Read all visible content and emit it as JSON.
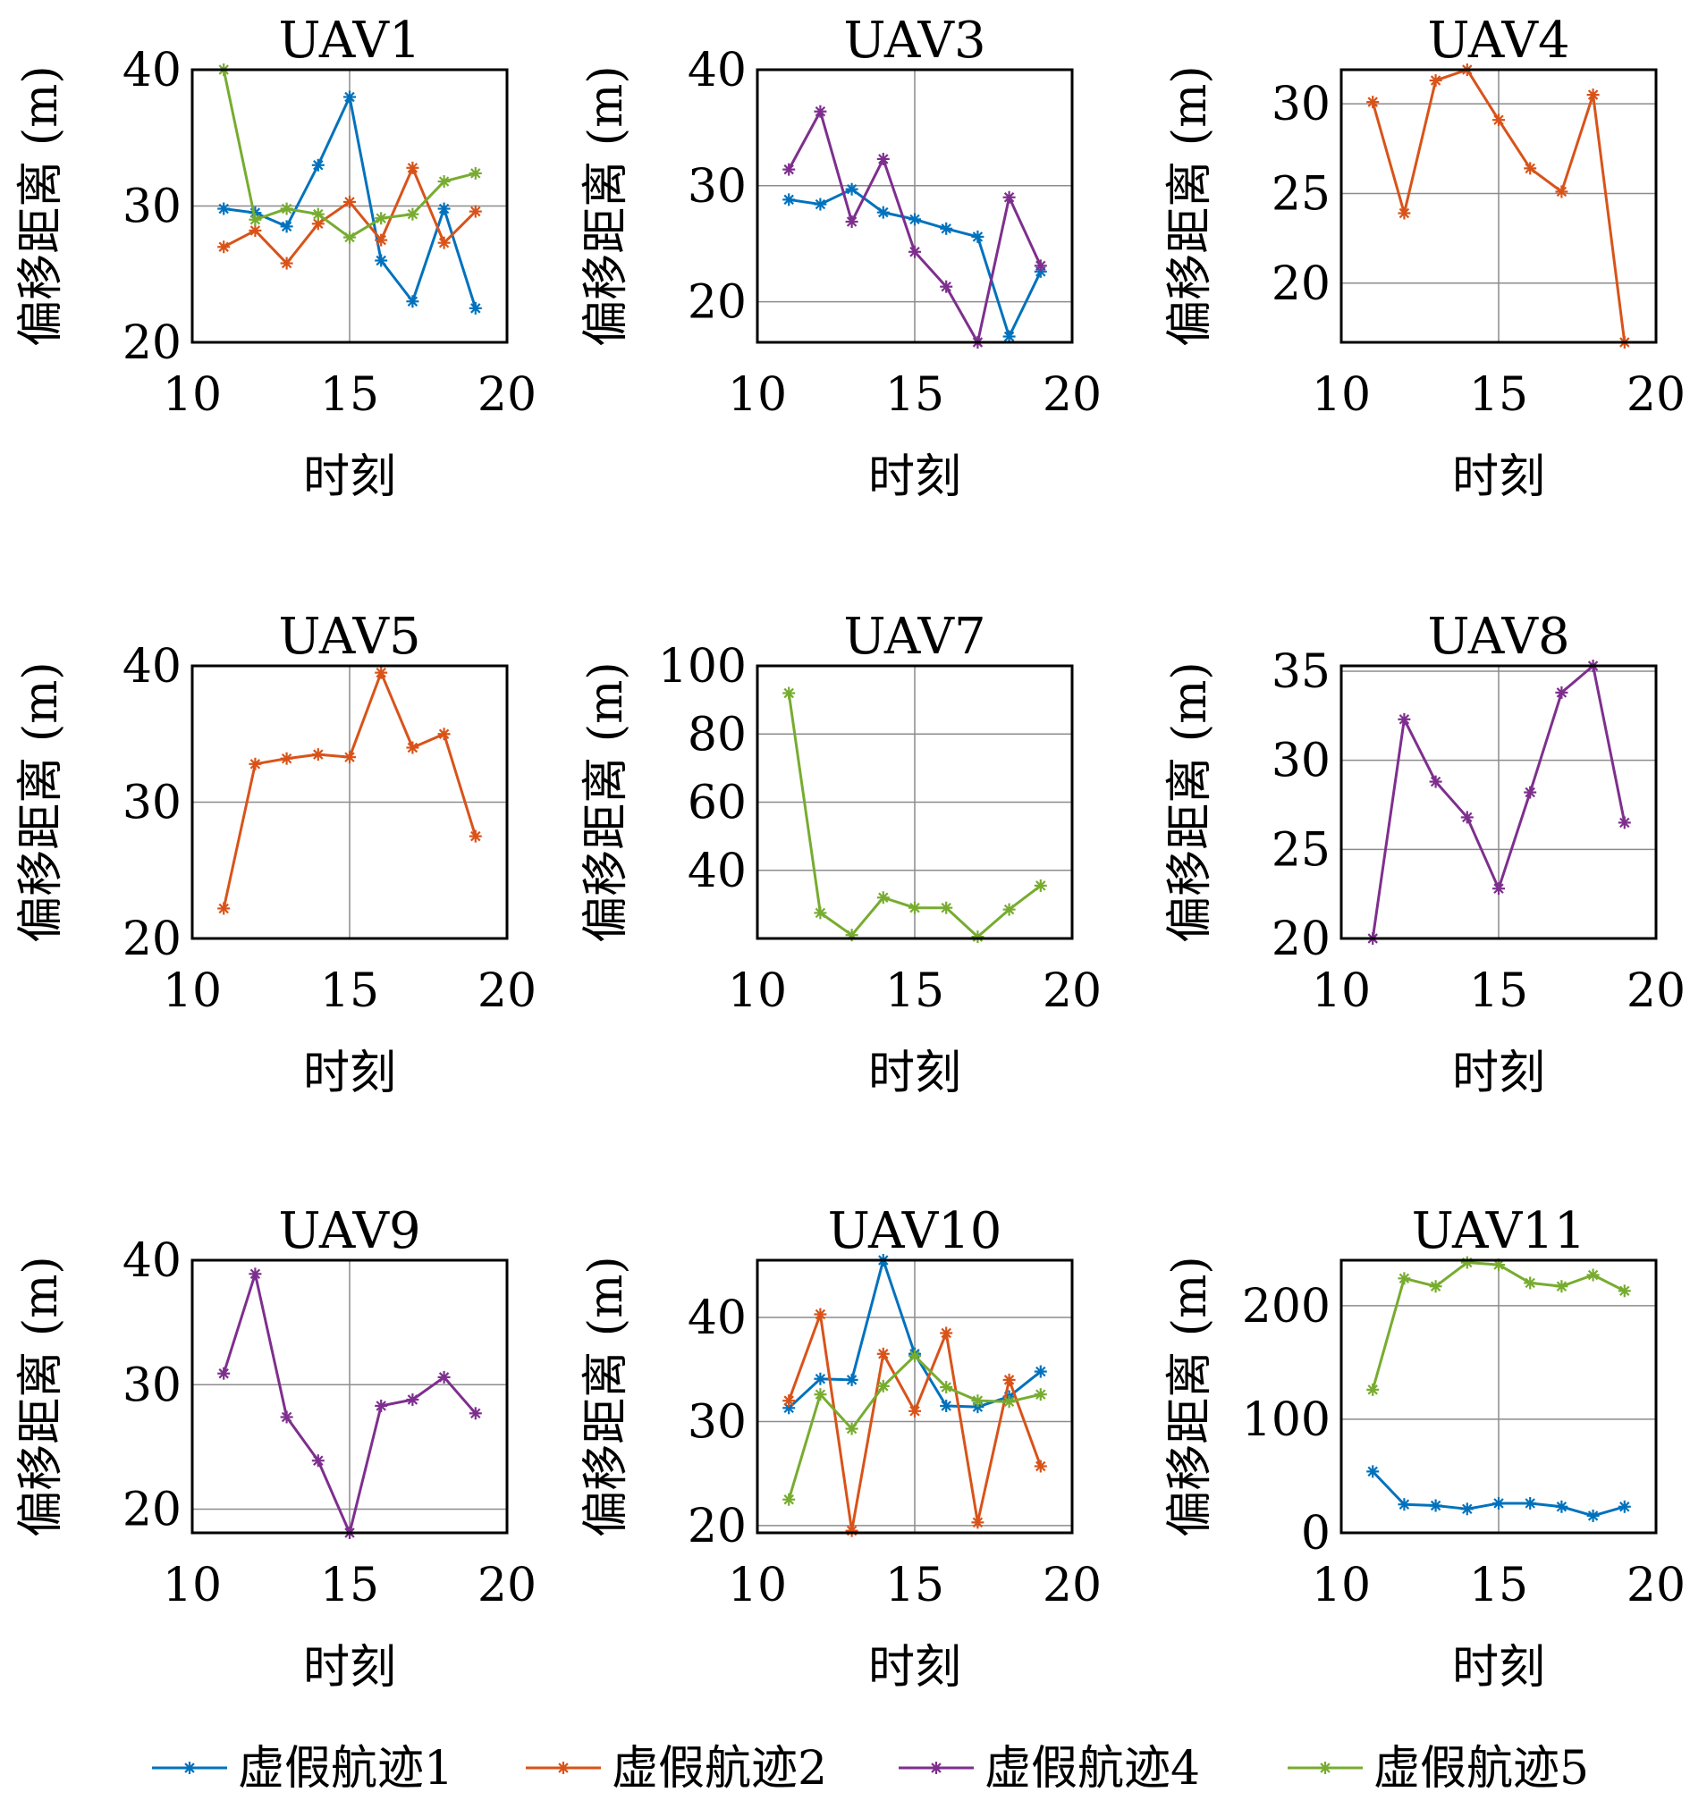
{
  "colors": {
    "s1": "#0072BD",
    "s2": "#D95319",
    "s4": "#7E2F8E",
    "s5": "#77AC30",
    "grid": "#8c8c8c",
    "axis": "#000000"
  },
  "legend": [
    {
      "key": "s1",
      "label": "虚假航迹1"
    },
    {
      "key": "s2",
      "label": "虚假航迹2"
    },
    {
      "key": "s4",
      "label": "虚假航迹4"
    },
    {
      "key": "s5",
      "label": "虚假航迹5"
    }
  ],
  "chart_data": [
    {
      "type": "line",
      "title": "UAV1",
      "xlabel": "时刻",
      "ylabel": "偏移距离 (m)",
      "xlim": [
        10,
        20
      ],
      "ylim": [
        20,
        40
      ],
      "xticks": [
        10,
        15,
        20
      ],
      "yticks": [
        20,
        30,
        40
      ],
      "grid": true,
      "x": [
        11,
        12,
        13,
        14,
        15,
        16,
        17,
        18,
        19
      ],
      "series": [
        {
          "key": "s1",
          "name": "虚假航迹1",
          "values": [
            29.8,
            29.5,
            28.5,
            33.0,
            38.0,
            26.0,
            23.0,
            29.8,
            22.5
          ]
        },
        {
          "key": "s2",
          "name": "虚假航迹2",
          "values": [
            27.0,
            28.2,
            25.8,
            28.7,
            30.3,
            27.5,
            32.8,
            27.3,
            29.6
          ]
        },
        {
          "key": "s5",
          "name": "虚假航迹5",
          "values": [
            40.0,
            29.0,
            29.8,
            29.4,
            27.7,
            29.1,
            29.4,
            31.8,
            32.4
          ]
        }
      ]
    },
    {
      "type": "line",
      "title": "UAV3",
      "xlabel": "时刻",
      "ylabel": "偏移距离 (m)",
      "xlim": [
        10,
        20
      ],
      "ylim": [
        16.5,
        40
      ],
      "xticks": [
        10,
        15,
        20
      ],
      "yticks": [
        20,
        30,
        40
      ],
      "grid": true,
      "x": [
        11,
        12,
        13,
        14,
        15,
        16,
        17,
        18,
        19
      ],
      "series": [
        {
          "key": "s1",
          "name": "虚假航迹1",
          "values": [
            28.8,
            28.4,
            29.7,
            27.7,
            27.1,
            26.3,
            25.6,
            17.0,
            22.6
          ]
        },
        {
          "key": "s4",
          "name": "虚假航迹4",
          "values": [
            31.4,
            36.4,
            26.9,
            32.3,
            24.3,
            21.3,
            16.5,
            29.0,
            23.1
          ]
        }
      ]
    },
    {
      "type": "line",
      "title": "UAV4",
      "xlabel": "时刻",
      "ylabel": "偏移距离 (m)",
      "xlim": [
        10,
        20
      ],
      "ylim": [
        16.7,
        31.9
      ],
      "xticks": [
        10,
        15,
        20
      ],
      "yticks": [
        20,
        25,
        30
      ],
      "grid": true,
      "x": [
        11,
        12,
        13,
        14,
        15,
        16,
        17,
        18,
        19
      ],
      "series": [
        {
          "key": "s2",
          "name": "虚假航迹2",
          "values": [
            30.1,
            23.9,
            31.3,
            31.9,
            29.1,
            26.4,
            25.1,
            30.5,
            16.7
          ]
        }
      ]
    },
    {
      "type": "line",
      "title": "UAV5",
      "xlabel": "时刻",
      "ylabel": "偏移距离 (m)",
      "xlim": [
        10,
        20
      ],
      "ylim": [
        20,
        40
      ],
      "xticks": [
        10,
        15,
        20
      ],
      "yticks": [
        20,
        30,
        40
      ],
      "grid": true,
      "x": [
        11,
        12,
        13,
        14,
        15,
        16,
        17,
        18,
        19
      ],
      "series": [
        {
          "key": "s2",
          "name": "虚假航迹2",
          "values": [
            22.2,
            32.8,
            33.2,
            33.5,
            33.3,
            39.5,
            34.0,
            35.0,
            27.5
          ]
        }
      ]
    },
    {
      "type": "line",
      "title": "UAV7",
      "xlabel": "时刻",
      "ylabel": "偏移距离 (m)",
      "xlim": [
        10,
        20
      ],
      "ylim": [
        20,
        100
      ],
      "xticks": [
        10,
        15,
        20
      ],
      "yticks": [
        40,
        60,
        80,
        100
      ],
      "grid": true,
      "x": [
        11,
        12,
        13,
        14,
        15,
        16,
        17,
        18,
        19
      ],
      "series": [
        {
          "key": "s5",
          "name": "虚假航迹5",
          "values": [
            92.0,
            27.5,
            21.0,
            32.0,
            29.0,
            29.0,
            20.5,
            28.5,
            35.5
          ]
        }
      ]
    },
    {
      "type": "line",
      "title": "UAV8",
      "xlabel": "时刻",
      "ylabel": "偏移距离 (m)",
      "xlim": [
        10,
        20
      ],
      "ylim": [
        20,
        35.3
      ],
      "xticks": [
        10,
        15,
        20
      ],
      "yticks": [
        20,
        25,
        30,
        35
      ],
      "grid": true,
      "x": [
        11,
        12,
        13,
        14,
        15,
        16,
        17,
        18,
        19
      ],
      "series": [
        {
          "key": "s4",
          "name": "虚假航迹4",
          "values": [
            20.0,
            32.3,
            28.8,
            26.8,
            22.8,
            28.2,
            33.8,
            35.3,
            26.5
          ]
        }
      ]
    },
    {
      "type": "line",
      "title": "UAV9",
      "xlabel": "时刻",
      "ylabel": "偏移距离 (m)",
      "xlim": [
        10,
        20
      ],
      "ylim": [
        18.1,
        40
      ],
      "xticks": [
        10,
        15,
        20
      ],
      "yticks": [
        20,
        30,
        40
      ],
      "grid": true,
      "x": [
        11,
        12,
        13,
        14,
        15,
        16,
        17,
        18,
        19
      ],
      "series": [
        {
          "key": "s4",
          "name": "虚假航迹4",
          "values": [
            30.9,
            38.9,
            27.4,
            23.9,
            18.1,
            28.3,
            28.8,
            30.6,
            27.7
          ]
        }
      ]
    },
    {
      "type": "line",
      "title": "UAV10",
      "xlabel": "时刻",
      "ylabel": "偏移距离 (m)",
      "xlim": [
        10,
        20
      ],
      "ylim": [
        19.3,
        45.5
      ],
      "xticks": [
        10,
        15,
        20
      ],
      "yticks": [
        20,
        30,
        40
      ],
      "grid": true,
      "x": [
        11,
        12,
        13,
        14,
        15,
        16,
        17,
        18,
        19
      ],
      "series": [
        {
          "key": "s1",
          "name": "虚假航迹1",
          "values": [
            31.3,
            34.1,
            34.0,
            45.5,
            36.5,
            31.5,
            31.4,
            32.4,
            34.8
          ]
        },
        {
          "key": "s2",
          "name": "虚假航迹2",
          "values": [
            32.0,
            40.3,
            19.5,
            36.5,
            31.0,
            38.5,
            20.3,
            34.0,
            25.7
          ]
        },
        {
          "key": "s5",
          "name": "虚假航迹5",
          "values": [
            22.5,
            32.6,
            29.3,
            33.4,
            36.3,
            33.3,
            32.0,
            31.9,
            32.6
          ]
        }
      ]
    },
    {
      "type": "line",
      "title": "UAV11",
      "xlabel": "时刻",
      "ylabel": "偏移距离 (m)",
      "xlim": [
        10,
        20
      ],
      "ylim": [
        0,
        240
      ],
      "xticks": [
        10,
        15,
        20
      ],
      "yticks": [
        0,
        100,
        200
      ],
      "grid": true,
      "x": [
        11,
        12,
        13,
        14,
        15,
        16,
        17,
        18,
        19
      ],
      "series": [
        {
          "key": "s1",
          "name": "虚假航迹1",
          "values": [
            54.0,
            25.0,
            24.0,
            21.0,
            26.0,
            26.0,
            23.0,
            15.0,
            23.0
          ]
        },
        {
          "key": "s5",
          "name": "虚假航迹5",
          "values": [
            126.0,
            224.0,
            217.0,
            238.0,
            236.0,
            220.0,
            217.0,
            227.0,
            213.0
          ]
        }
      ]
    }
  ]
}
